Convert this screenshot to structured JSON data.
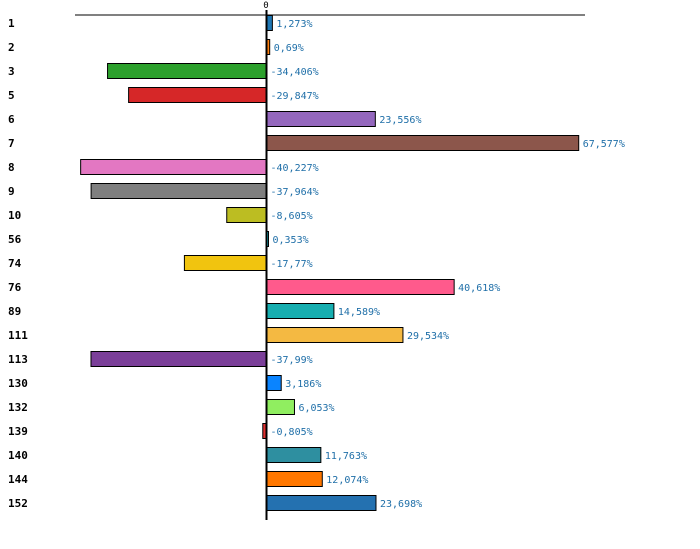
{
  "chart_data": {
    "type": "bar",
    "orientation": "horizontal",
    "title": "",
    "xlabel": "",
    "ylabel": "",
    "xlim": [
      -45,
      75
    ],
    "zero_tick_label": "0",
    "grid": false,
    "categories": [
      "1",
      "2",
      "3",
      "5",
      "6",
      "7",
      "8",
      "9",
      "10",
      "56",
      "74",
      "76",
      "89",
      "111",
      "113",
      "130",
      "132",
      "139",
      "140",
      "144",
      "152"
    ],
    "values": [
      1.273,
      0.69,
      -34.406,
      -29.847,
      23.556,
      67.577,
      -40.227,
      -37.964,
      -8.605,
      0.353,
      -17.77,
      40.618,
      14.589,
      29.534,
      -37.99,
      3.186,
      6.053,
      -0.805,
      11.763,
      12.074,
      23.698
    ],
    "value_labels": [
      "1,273%",
      "0,69%",
      "-34,406%",
      "-29,847%",
      "23,556%",
      "67,577%",
      "-40,227%",
      "-37,964%",
      "-8,605%",
      "0,353%",
      "-17,77%",
      "40,618%",
      "14,589%",
      "29,534%",
      "-37,99%",
      "3,186%",
      "6,053%",
      "-0,805%",
      "11,763%",
      "12,074%",
      "23,698%"
    ],
    "colors": [
      "#1f77b4",
      "#ff7f0e",
      "#2ca02c",
      "#d62728",
      "#9467bd",
      "#8c564b",
      "#e377c2",
      "#7f7f7f",
      "#bcbd22",
      "#17becf",
      "#f1c40f",
      "#ff5a8c",
      "#17aeb0",
      "#f4b942",
      "#7b3f99",
      "#0a84ff",
      "#90ee60",
      "#e03030",
      "#2e8fa0",
      "#ff7700",
      "#2471b0"
    ]
  }
}
